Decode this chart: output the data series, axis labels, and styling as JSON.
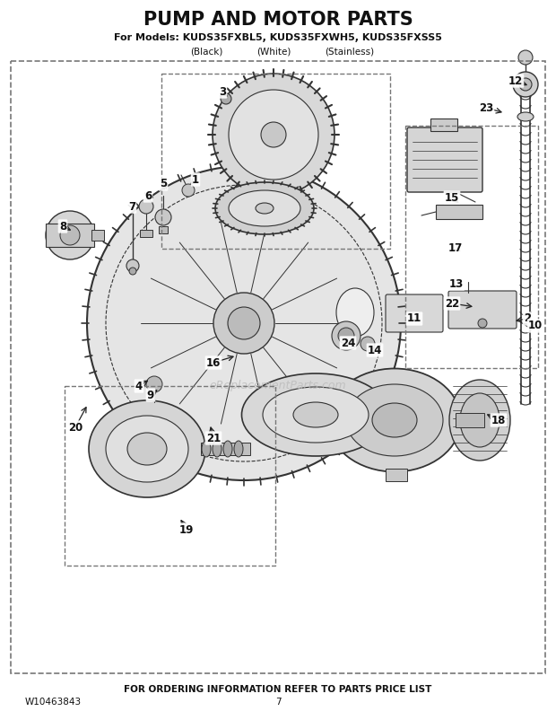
{
  "title": "PUMP AND MOTOR PARTS",
  "subtitle": "For Models: KUDS35FXBL5, KUDS35FXWH5, KUDS35FXSS5",
  "subtitle2_parts": [
    "(Black)",
    "(White)",
    "(Stainless)"
  ],
  "footer": "FOR ORDERING INFORMATION REFER TO PARTS PRICE LIST",
  "doc_number": "W10463843",
  "page": "7",
  "watermark": "eReplacementParts.com",
  "bg_color": "#ffffff",
  "lc": "#333333",
  "label_cfg": [
    [
      "1",
      218,
      200,
      210,
      208
    ],
    [
      "2",
      588,
      355,
      572,
      358
    ],
    [
      "3",
      248,
      102,
      256,
      110
    ],
    [
      "4",
      155,
      430,
      168,
      422
    ],
    [
      "5",
      182,
      205,
      184,
      215
    ],
    [
      "6",
      165,
      218,
      166,
      224
    ],
    [
      "7",
      147,
      230,
      150,
      236
    ],
    [
      "8",
      70,
      252,
      82,
      258
    ],
    [
      "9",
      168,
      440,
      178,
      432
    ],
    [
      "10",
      597,
      363,
      580,
      360
    ],
    [
      "11",
      462,
      355,
      464,
      362
    ],
    [
      "12",
      575,
      90,
      591,
      96
    ],
    [
      "13",
      509,
      316,
      516,
      322
    ],
    [
      "14",
      418,
      390,
      412,
      384
    ],
    [
      "15",
      504,
      220,
      514,
      228
    ],
    [
      "16",
      238,
      404,
      264,
      396
    ],
    [
      "17",
      508,
      276,
      516,
      282
    ],
    [
      "18",
      556,
      468,
      540,
      460
    ],
    [
      "19",
      208,
      590,
      200,
      576
    ],
    [
      "20",
      84,
      476,
      98,
      450
    ],
    [
      "21",
      238,
      488,
      234,
      472
    ],
    [
      "22",
      504,
      338,
      530,
      342
    ],
    [
      "23",
      542,
      120,
      563,
      126
    ],
    [
      "24",
      388,
      382,
      382,
      374
    ]
  ]
}
